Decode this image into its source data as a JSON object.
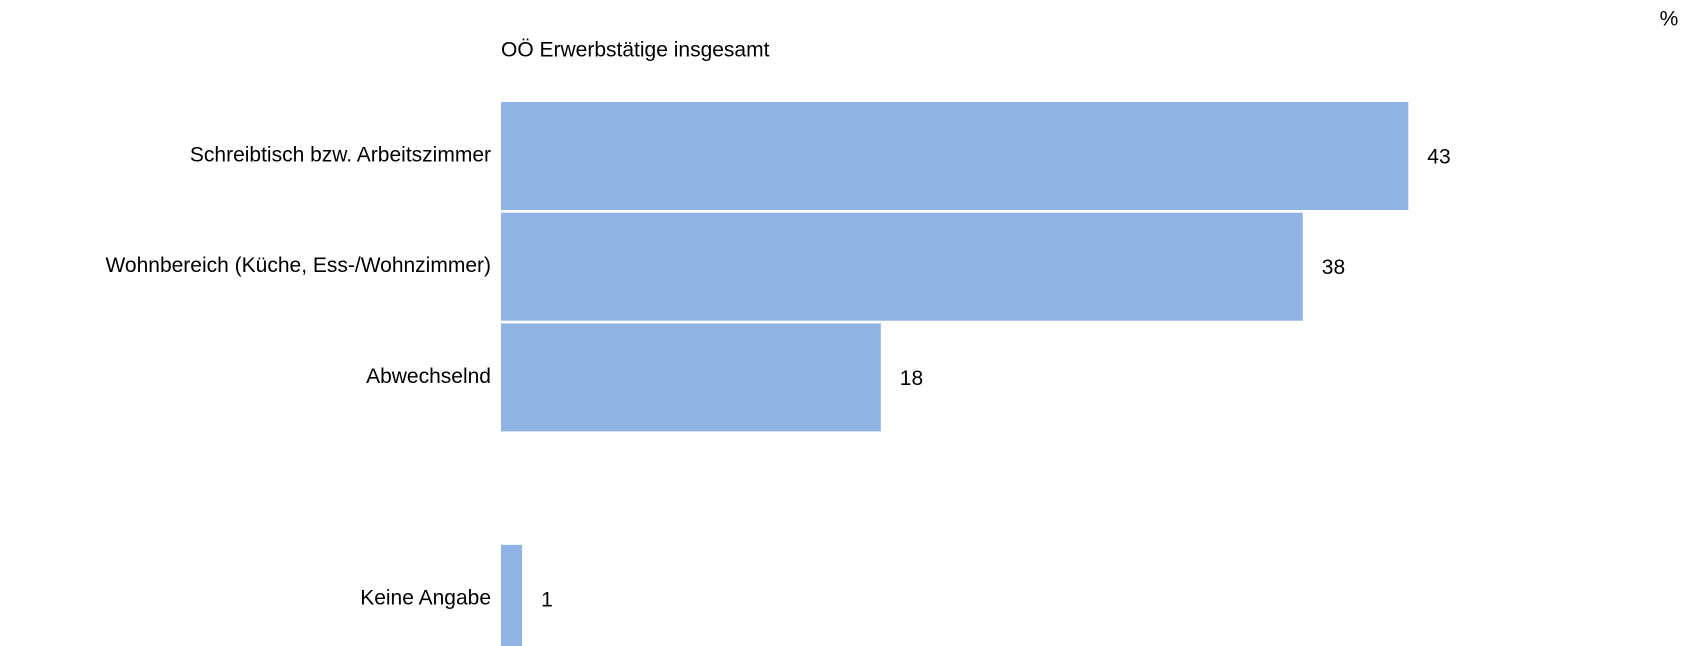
{
  "chart_data": {
    "type": "bar",
    "orientation": "horizontal",
    "subtitle": "OÖ Erwerbstätige insgesamt",
    "unit": "%",
    "categories": [
      "Schreibtisch bzw. Arbeitszimmer",
      "Wohnbereich (Küche, Ess-/Wohnzimmer)",
      "Abwechselnd",
      null,
      "Keine Angabe"
    ],
    "values": [
      43,
      38,
      18,
      null,
      1
    ],
    "color": "#8fb4e3"
  }
}
